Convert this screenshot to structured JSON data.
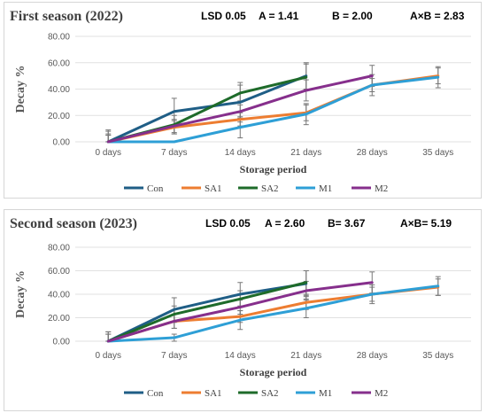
{
  "chart_data": [
    {
      "type": "line",
      "title": "First season (2022)",
      "stats": {
        "lsd": "LSD 0.05",
        "a": "A =  1.41",
        "b": "B =  2.00",
        "ab": "A×B = 2.83"
      },
      "xlabel": "Storage period",
      "ylabel": "Decay %",
      "categories": [
        "0 days",
        "7 days",
        "14 days",
        "21 days",
        "28 days",
        "35 days"
      ],
      "yticks": [
        "0.00",
        "20.00",
        "40.00",
        "60.00",
        "80.00"
      ],
      "ylim": [
        0,
        80
      ],
      "grid": true,
      "legend": "bottom",
      "series": [
        {
          "name": "Con",
          "color": "#1f5e86",
          "values": [
            0,
            23,
            30,
            50,
            null,
            null
          ],
          "err": [
            9,
            10,
            15,
            10,
            null,
            null
          ]
        },
        {
          "name": "SA1",
          "color": "#ed7d31",
          "values": [
            0,
            11,
            17,
            22,
            43,
            50
          ],
          "err": [
            5,
            5,
            5,
            6,
            5,
            6
          ]
        },
        {
          "name": "SA2",
          "color": "#1e6b2a",
          "values": [
            0,
            13,
            37,
            49,
            null,
            null
          ],
          "err": [
            5,
            7,
            6,
            10,
            null,
            null
          ]
        },
        {
          "name": "M1",
          "color": "#2e9fd6",
          "values": [
            0,
            0,
            11,
            21,
            43,
            49
          ],
          "err": [
            8,
            0,
            8,
            8,
            8,
            8
          ]
        },
        {
          "name": "M2",
          "color": "#862f8c",
          "values": [
            0,
            12,
            23,
            39,
            50,
            null
          ],
          "err": [
            6,
            5,
            5,
            8,
            8,
            null
          ]
        }
      ]
    },
    {
      "type": "line",
      "title": "Second season (2023)",
      "stats": {
        "lsd": "LSD 0.05",
        "a": "A =  2.60",
        "b": "B=   3.67",
        "ab": "A×B= 5.19"
      },
      "xlabel": "Storage period",
      "ylabel": "Decay %",
      "categories": [
        "0 days",
        "7 days",
        "14 days",
        "21 days",
        "28 days",
        "35 days"
      ],
      "yticks": [
        "0.00",
        "20.00",
        "40.00",
        "60.00",
        "80.00"
      ],
      "ylim": [
        0,
        80
      ],
      "grid": true,
      "legend": "bottom",
      "series": [
        {
          "name": "Con",
          "color": "#1f5e86",
          "values": [
            0,
            27,
            40,
            49,
            null,
            null
          ],
          "err": [
            8,
            10,
            10,
            11,
            null,
            null
          ]
        },
        {
          "name": "SA1",
          "color": "#ed7d31",
          "values": [
            0,
            17,
            21,
            33,
            40,
            46
          ],
          "err": [
            6,
            6,
            5,
            6,
            6,
            7
          ]
        },
        {
          "name": "SA2",
          "color": "#1e6b2a",
          "values": [
            0,
            23,
            36,
            50,
            null,
            null
          ],
          "err": [
            6,
            7,
            7,
            10,
            null,
            null
          ]
        },
        {
          "name": "M1",
          "color": "#2e9fd6",
          "values": [
            0,
            3,
            18,
            28,
            40,
            47
          ],
          "err": [
            8,
            3,
            8,
            8,
            8,
            8
          ]
        },
        {
          "name": "M2",
          "color": "#862f8c",
          "values": [
            0,
            17,
            29,
            43,
            50,
            null
          ],
          "err": [
            6,
            6,
            6,
            8,
            9,
            null
          ]
        }
      ]
    }
  ]
}
